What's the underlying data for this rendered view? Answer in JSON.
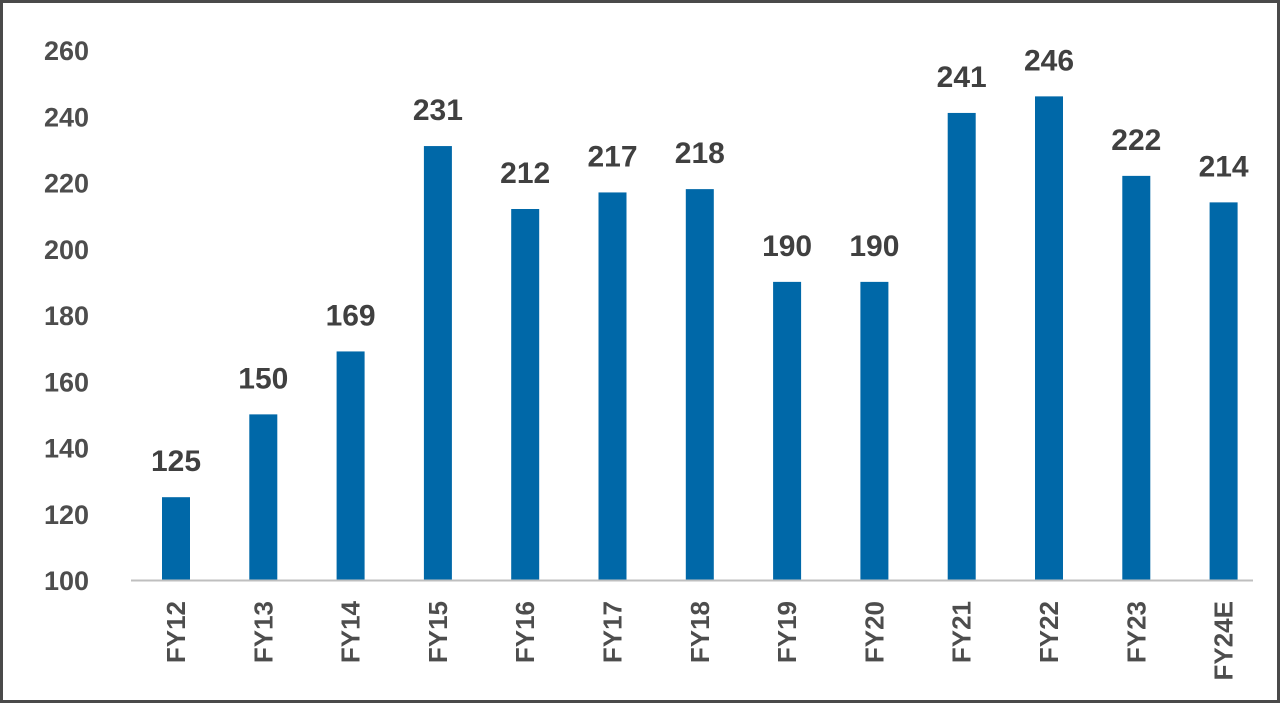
{
  "chart_data": {
    "type": "bar",
    "categories": [
      "FY12",
      "FY13",
      "FY14",
      "FY15",
      "FY16",
      "FY17",
      "FY18",
      "FY19",
      "FY20",
      "FY21",
      "FY22",
      "FY23",
      "FY24E"
    ],
    "values": [
      125,
      150,
      169,
      231,
      212,
      217,
      218,
      190,
      190,
      241,
      246,
      222,
      214
    ],
    "data_labels": [
      "125",
      "150",
      "169",
      "231",
      "212",
      "217",
      "218",
      "190",
      "190",
      "241",
      "246",
      "222",
      "214"
    ],
    "y_ticks": [
      "100",
      "120",
      "140",
      "160",
      "180",
      "200",
      "220",
      "240",
      "260"
    ],
    "ylim": [
      100,
      260
    ],
    "grid": false,
    "legend": "none",
    "bar_color": "#0068a8",
    "axis_color": "#bfbfbf",
    "text_color": "#4d4d4d",
    "title": "",
    "xlabel": "",
    "ylabel": ""
  }
}
